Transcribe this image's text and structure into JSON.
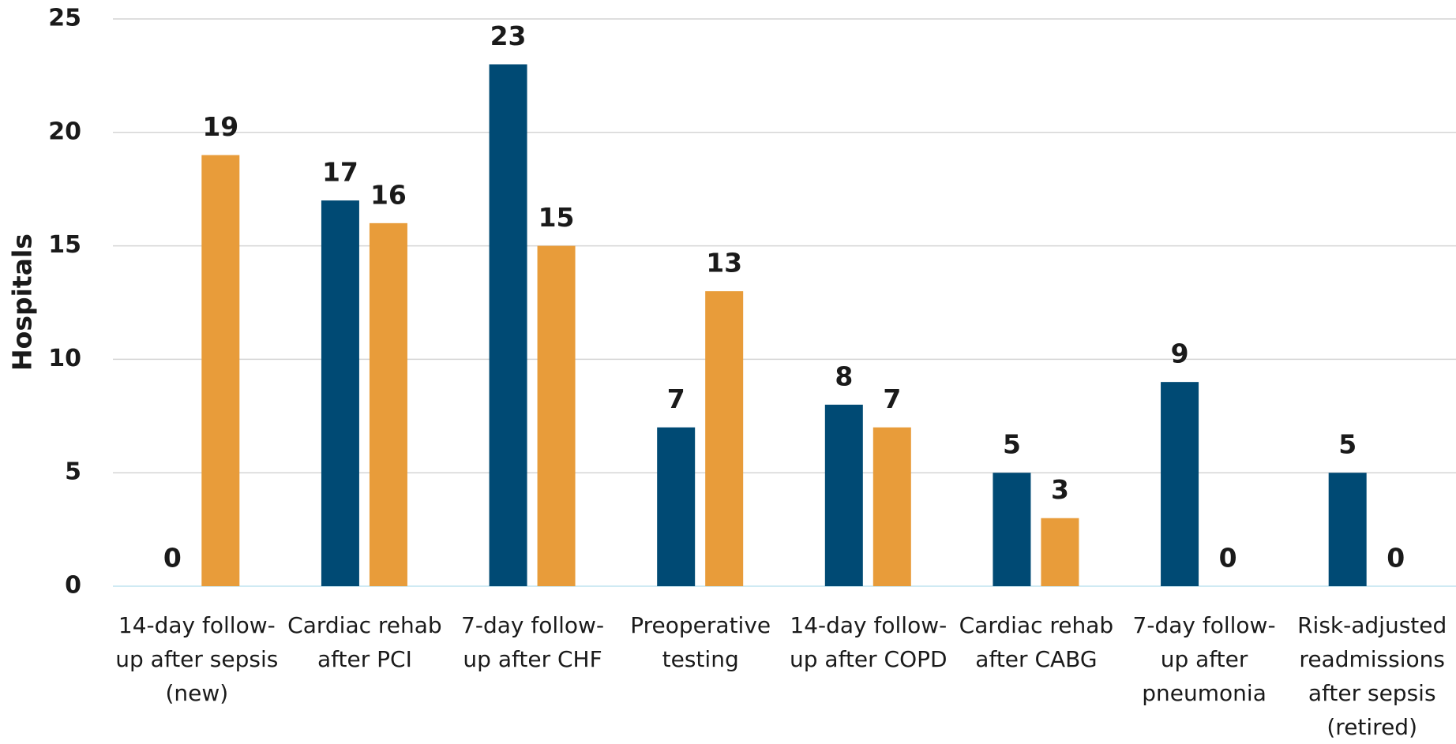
{
  "chart_data": {
    "type": "bar",
    "y_label": "Hospitals",
    "categories": [
      "14-day follow-up after sepsis (new)",
      "Cardiac rehab after PCI",
      "7-day follow-up after CHF",
      "Preoperative testing",
      "14-day follow-up after COPD",
      "Cardiac rehab after CABG",
      "7-day follow-up after pneumonia",
      "Risk-adjusted readmissions after sepsis (retired)"
    ],
    "series": [
      {
        "color": "#004a74",
        "values": [
          0,
          17,
          23,
          7,
          8,
          5,
          9,
          5
        ]
      },
      {
        "color": "#e89c3a",
        "values": [
          19,
          16,
          15,
          13,
          7,
          3,
          0,
          0
        ]
      }
    ],
    "ylim": [
      0,
      25
    ],
    "yticks": [
      0,
      5,
      10,
      15,
      20,
      25
    ],
    "grid": true
  }
}
